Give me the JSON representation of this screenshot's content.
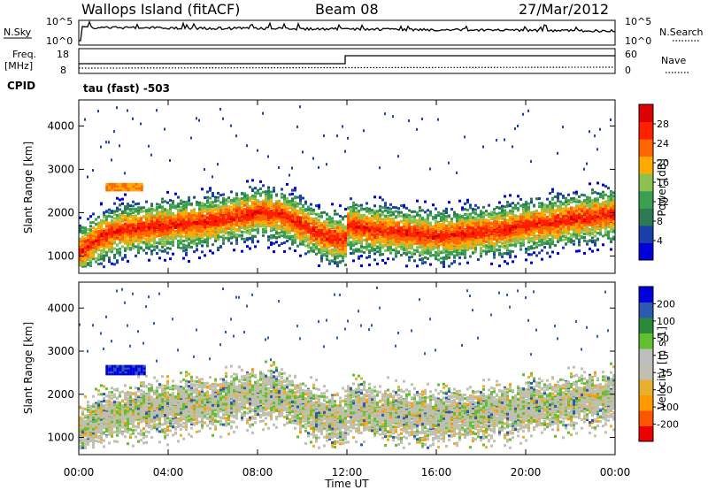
{
  "header": {
    "station": "Wallops Island (fitACF)",
    "beam": "Beam 08",
    "date": "27/Mar/2012"
  },
  "top_panel": {
    "left_label": "N.Sky",
    "left_ticks": [
      "10^5",
      "10^0"
    ],
    "right_label": "N.Search",
    "right_ticks": [
      "10^5",
      "10^0"
    ]
  },
  "freq_panel": {
    "left_label_1": "Freq.",
    "left_label_2": "[MHz]",
    "left_ticks": [
      "18",
      "8"
    ],
    "right_label": "Nave",
    "right_ticks": [
      "60",
      "0"
    ],
    "cpid_label": "CPID",
    "cpid_text": "tau (fast) -503"
  },
  "colors": {
    "power": [
      "#0000dd",
      "#1a3fa8",
      "#2d7a55",
      "#3aa050",
      "#8cc050",
      "#ffaa00",
      "#ff6600",
      "#ff2000",
      "#dd0000"
    ],
    "velocity": [
      "#ee0000",
      "#ff5500",
      "#ff9900",
      "#e8b030",
      "#c0c0b0",
      "#bdbdbd",
      "#60c030",
      "#2a8a3a",
      "#2c5ab0",
      "#0000dd"
    ]
  },
  "chart_data": [
    {
      "type": "heatmap",
      "name": "power",
      "ylabel": "Slant Range [km]",
      "yticks": [
        "1000",
        "2000",
        "3000",
        "4000"
      ],
      "ylim": [
        600,
        4600
      ],
      "colorbar_label": "Power [dB]",
      "colorbar_ticks": [
        "4",
        "8",
        "12",
        "16",
        "20",
        "24",
        "28"
      ],
      "colorbar_range": [
        0,
        32
      ],
      "backscatter_center_km": {
        "x_hours": [
          0,
          1,
          2,
          3,
          4,
          5,
          6,
          7,
          8,
          9,
          10,
          11,
          11.99,
          12,
          13,
          14,
          15,
          16,
          17,
          18,
          19,
          20,
          21,
          22,
          23,
          24
        ],
        "range_km": [
          1100,
          1450,
          1600,
          1650,
          1700,
          1750,
          1800,
          1900,
          2000,
          1950,
          1700,
          1450,
          1350,
          1700,
          1600,
          1550,
          1500,
          1450,
          1500,
          1550,
          1600,
          1700,
          1750,
          1850,
          1900,
          1950
        ]
      },
      "patch_km": {
        "x_hours": [
          1.2,
          2.8
        ],
        "range_km": [
          2550,
          2700
        ],
        "power_db": 20
      }
    },
    {
      "type": "heatmap",
      "name": "velocity",
      "ylabel": "Slant Range [km]",
      "yticks": [
        "1000",
        "2000",
        "3000",
        "4000"
      ],
      "ylim": [
        600,
        4600
      ],
      "colorbar_label": "Velocity [m s-1]",
      "colorbar_ticks": [
        "200",
        "100",
        "50",
        "15",
        "-15",
        "-50",
        "-100",
        "-200"
      ],
      "colorbar_range": [
        -250,
        250
      ],
      "patch_km": {
        "x_hours": [
          1.2,
          2.9
        ],
        "range_km": [
          2500,
          2700
        ],
        "velocity": 200
      }
    }
  ],
  "x_axis": {
    "label": "Time UT",
    "ticks": [
      "00:00",
      "04:00",
      "08:00",
      "12:00",
      "16:00",
      "20:00",
      "00:00"
    ],
    "range_hours": [
      0,
      24
    ]
  }
}
